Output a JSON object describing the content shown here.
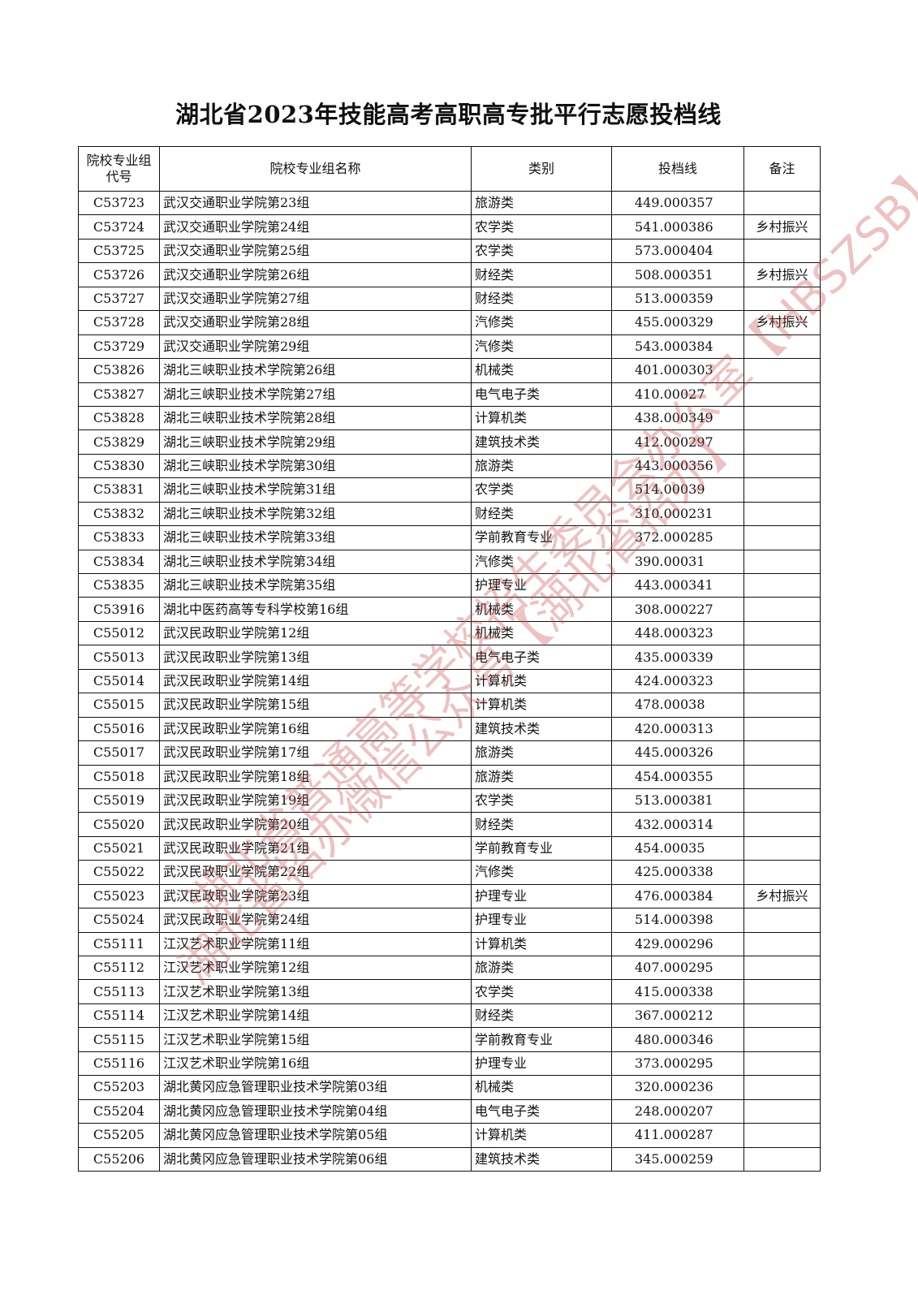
{
  "title": "湖北省2023年技能高考高职高专批平行志愿投档线",
  "headers": [
    "院校专业组代号",
    "院校专业组名称",
    "类别",
    "投档线",
    "备注"
  ],
  "watermark": [
    "湖北省普通高等学校招生委员会办公室【HBSZSB】",
    "湖北省招办微信公众号【湖北省招办】"
  ],
  "watermark_color": "#c85050",
  "rows": [
    {
      "code": "C53723",
      "name": "武汉交通职业学院第23组",
      "cat": "旅游类",
      "score": "449.000357",
      "note": ""
    },
    {
      "code": "C53724",
      "name": "武汉交通职业学院第24组",
      "cat": "农学类",
      "score": "541.000386",
      "note": "乡村振兴"
    },
    {
      "code": "C53725",
      "name": "武汉交通职业学院第25组",
      "cat": "农学类",
      "score": "573.000404",
      "note": ""
    },
    {
      "code": "C53726",
      "name": "武汉交通职业学院第26组",
      "cat": "财经类",
      "score": "508.000351",
      "note": "乡村振兴"
    },
    {
      "code": "C53727",
      "name": "武汉交通职业学院第27组",
      "cat": "财经类",
      "score": "513.000359",
      "note": ""
    },
    {
      "code": "C53728",
      "name": "武汉交通职业学院第28组",
      "cat": "汽修类",
      "score": "455.000329",
      "note": "乡村振兴"
    },
    {
      "code": "C53729",
      "name": "武汉交通职业学院第29组",
      "cat": "汽修类",
      "score": "543.000384",
      "note": ""
    },
    {
      "code": "C53826",
      "name": "湖北三峡职业技术学院第26组",
      "cat": "机械类",
      "score": "401.000303",
      "note": ""
    },
    {
      "code": "C53827",
      "name": "湖北三峡职业技术学院第27组",
      "cat": "电气电子类",
      "score": "410.00027",
      "note": ""
    },
    {
      "code": "C53828",
      "name": "湖北三峡职业技术学院第28组",
      "cat": "计算机类",
      "score": "438.000349",
      "note": ""
    },
    {
      "code": "C53829",
      "name": "湖北三峡职业技术学院第29组",
      "cat": "建筑技术类",
      "score": "412.000297",
      "note": ""
    },
    {
      "code": "C53830",
      "name": "湖北三峡职业技术学院第30组",
      "cat": "旅游类",
      "score": "443.000356",
      "note": ""
    },
    {
      "code": "C53831",
      "name": "湖北三峡职业技术学院第31组",
      "cat": "农学类",
      "score": "514.00039",
      "note": ""
    },
    {
      "code": "C53832",
      "name": "湖北三峡职业技术学院第32组",
      "cat": "财经类",
      "score": "310.000231",
      "note": ""
    },
    {
      "code": "C53833",
      "name": "湖北三峡职业技术学院第33组",
      "cat": "学前教育专业",
      "score": "372.000285",
      "note": ""
    },
    {
      "code": "C53834",
      "name": "湖北三峡职业技术学院第34组",
      "cat": "汽修类",
      "score": "390.00031",
      "note": ""
    },
    {
      "code": "C53835",
      "name": "湖北三峡职业技术学院第35组",
      "cat": "护理专业",
      "score": "443.000341",
      "note": ""
    },
    {
      "code": "C53916",
      "name": "湖北中医药高等专科学校第16组",
      "cat": "机械类",
      "score": "308.000227",
      "note": ""
    },
    {
      "code": "C55012",
      "name": "武汉民政职业学院第12组",
      "cat": "机械类",
      "score": "448.000323",
      "note": ""
    },
    {
      "code": "C55013",
      "name": "武汉民政职业学院第13组",
      "cat": "电气电子类",
      "score": "435.000339",
      "note": ""
    },
    {
      "code": "C55014",
      "name": "武汉民政职业学院第14组",
      "cat": "计算机类",
      "score": "424.000323",
      "note": ""
    },
    {
      "code": "C55015",
      "name": "武汉民政职业学院第15组",
      "cat": "计算机类",
      "score": "478.00038",
      "note": ""
    },
    {
      "code": "C55016",
      "name": "武汉民政职业学院第16组",
      "cat": "建筑技术类",
      "score": "420.000313",
      "note": ""
    },
    {
      "code": "C55017",
      "name": "武汉民政职业学院第17组",
      "cat": "旅游类",
      "score": "445.000326",
      "note": ""
    },
    {
      "code": "C55018",
      "name": "武汉民政职业学院第18组",
      "cat": "旅游类",
      "score": "454.000355",
      "note": ""
    },
    {
      "code": "C55019",
      "name": "武汉民政职业学院第19组",
      "cat": "农学类",
      "score": "513.000381",
      "note": ""
    },
    {
      "code": "C55020",
      "name": "武汉民政职业学院第20组",
      "cat": "财经类",
      "score": "432.000314",
      "note": ""
    },
    {
      "code": "C55021",
      "name": "武汉民政职业学院第21组",
      "cat": "学前教育专业",
      "score": "454.00035",
      "note": ""
    },
    {
      "code": "C55022",
      "name": "武汉民政职业学院第22组",
      "cat": "汽修类",
      "score": "425.000338",
      "note": ""
    },
    {
      "code": "C55023",
      "name": "武汉民政职业学院第23组",
      "cat": "护理专业",
      "score": "476.000384",
      "note": "乡村振兴"
    },
    {
      "code": "C55024",
      "name": "武汉民政职业学院第24组",
      "cat": "护理专业",
      "score": "514.000398",
      "note": ""
    },
    {
      "code": "C55111",
      "name": "江汉艺术职业学院第11组",
      "cat": "计算机类",
      "score": "429.000296",
      "note": ""
    },
    {
      "code": "C55112",
      "name": "江汉艺术职业学院第12组",
      "cat": "旅游类",
      "score": "407.000295",
      "note": ""
    },
    {
      "code": "C55113",
      "name": "江汉艺术职业学院第13组",
      "cat": "农学类",
      "score": "415.000338",
      "note": ""
    },
    {
      "code": "C55114",
      "name": "江汉艺术职业学院第14组",
      "cat": "财经类",
      "score": "367.000212",
      "note": ""
    },
    {
      "code": "C55115",
      "name": "江汉艺术职业学院第15组",
      "cat": "学前教育专业",
      "score": "480.000346",
      "note": ""
    },
    {
      "code": "C55116",
      "name": "江汉艺术职业学院第16组",
      "cat": "护理专业",
      "score": "373.000295",
      "note": ""
    },
    {
      "code": "C55203",
      "name": "湖北黄冈应急管理职业技术学院第03组",
      "cat": "机械类",
      "score": "320.000236",
      "note": ""
    },
    {
      "code": "C55204",
      "name": "湖北黄冈应急管理职业技术学院第04组",
      "cat": "电气电子类",
      "score": "248.000207",
      "note": ""
    },
    {
      "code": "C55205",
      "name": "湖北黄冈应急管理职业技术学院第05组",
      "cat": "计算机类",
      "score": "411.000287",
      "note": ""
    },
    {
      "code": "C55206",
      "name": "湖北黄冈应急管理职业技术学院第06组",
      "cat": "建筑技术类",
      "score": "345.000259",
      "note": ""
    }
  ]
}
